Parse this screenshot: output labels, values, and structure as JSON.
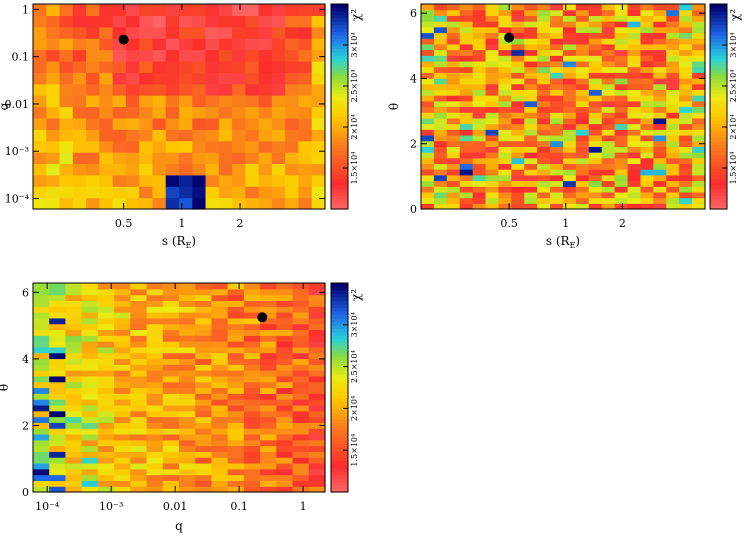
{
  "colorbar_label": "χ²",
  "chart_data": [
    {
      "type": "heatmap",
      "xlabel": "s (R",
      "xlabel_sub": "E",
      "xlabel_close": ")",
      "ylabel": "q",
      "x_scale": "log",
      "y_scale": "log",
      "xlim": [
        0.17,
        5.5
      ],
      "ylim": [
        6e-05,
        1.3
      ],
      "xticks": [
        {
          "v": 0.5,
          "t": "0.5"
        },
        {
          "v": 1,
          "t": "1"
        },
        {
          "v": 2,
          "t": "2"
        }
      ],
      "yticks": [
        {
          "v": 0.0001,
          "t": "10⁻⁴"
        },
        {
          "v": 0.001,
          "t": "10⁻³"
        },
        {
          "v": 0.01,
          "t": "0.01"
        },
        {
          "v": 0.1,
          "t": "0.1"
        },
        {
          "v": 1,
          "t": "1"
        }
      ],
      "nx": 22,
      "ny": 18,
      "best_fit": {
        "x": 0.5,
        "y": 0.23
      }
    },
    {
      "type": "heatmap",
      "xlabel": "s (R",
      "xlabel_sub": "E",
      "xlabel_close": ")",
      "ylabel": "θ",
      "x_scale": "log",
      "y_scale": "linear",
      "xlim": [
        0.17,
        5.5
      ],
      "ylim": [
        0,
        6.28
      ],
      "xticks": [
        {
          "v": 0.5,
          "t": "0.5"
        },
        {
          "v": 1,
          "t": "1"
        },
        {
          "v": 2,
          "t": "2"
        }
      ],
      "yticks": [
        {
          "v": 0,
          "t": "0"
        },
        {
          "v": 2,
          "t": "2"
        },
        {
          "v": 4,
          "t": "4"
        },
        {
          "v": 6,
          "t": "6"
        }
      ],
      "nx": 22,
      "ny": 36,
      "best_fit": {
        "x": 0.5,
        "y": 5.25
      }
    },
    {
      "type": "heatmap",
      "xlabel": "q",
      "ylabel": "θ",
      "x_scale": "log",
      "y_scale": "linear",
      "xlim": [
        6e-05,
        2.2
      ],
      "ylim": [
        0,
        6.28
      ],
      "xticks": [
        {
          "v": 0.0001,
          "t": "10⁻⁴"
        },
        {
          "v": 0.001,
          "t": "10⁻³"
        },
        {
          "v": 0.01,
          "t": "0.01"
        },
        {
          "v": 0.1,
          "t": "0.1"
        },
        {
          "v": 1,
          "t": "1"
        }
      ],
      "yticks": [
        {
          "v": 0,
          "t": "0"
        },
        {
          "v": 2,
          "t": "2"
        },
        {
          "v": 4,
          "t": "4"
        },
        {
          "v": 6,
          "t": "6"
        }
      ],
      "nx": 18,
      "ny": 36,
      "best_fit": {
        "x": 0.23,
        "y": 5.25
      }
    }
  ],
  "colorbar": {
    "range": [
      10000,
      35000
    ],
    "ticks": [
      {
        "v": 15000,
        "t": "1.5×10⁴"
      },
      {
        "v": 20000,
        "t": "2×10⁴"
      },
      {
        "v": 25000,
        "t": "2.5×10⁴"
      },
      {
        "v": 30000,
        "t": "3×10⁴"
      }
    ]
  }
}
